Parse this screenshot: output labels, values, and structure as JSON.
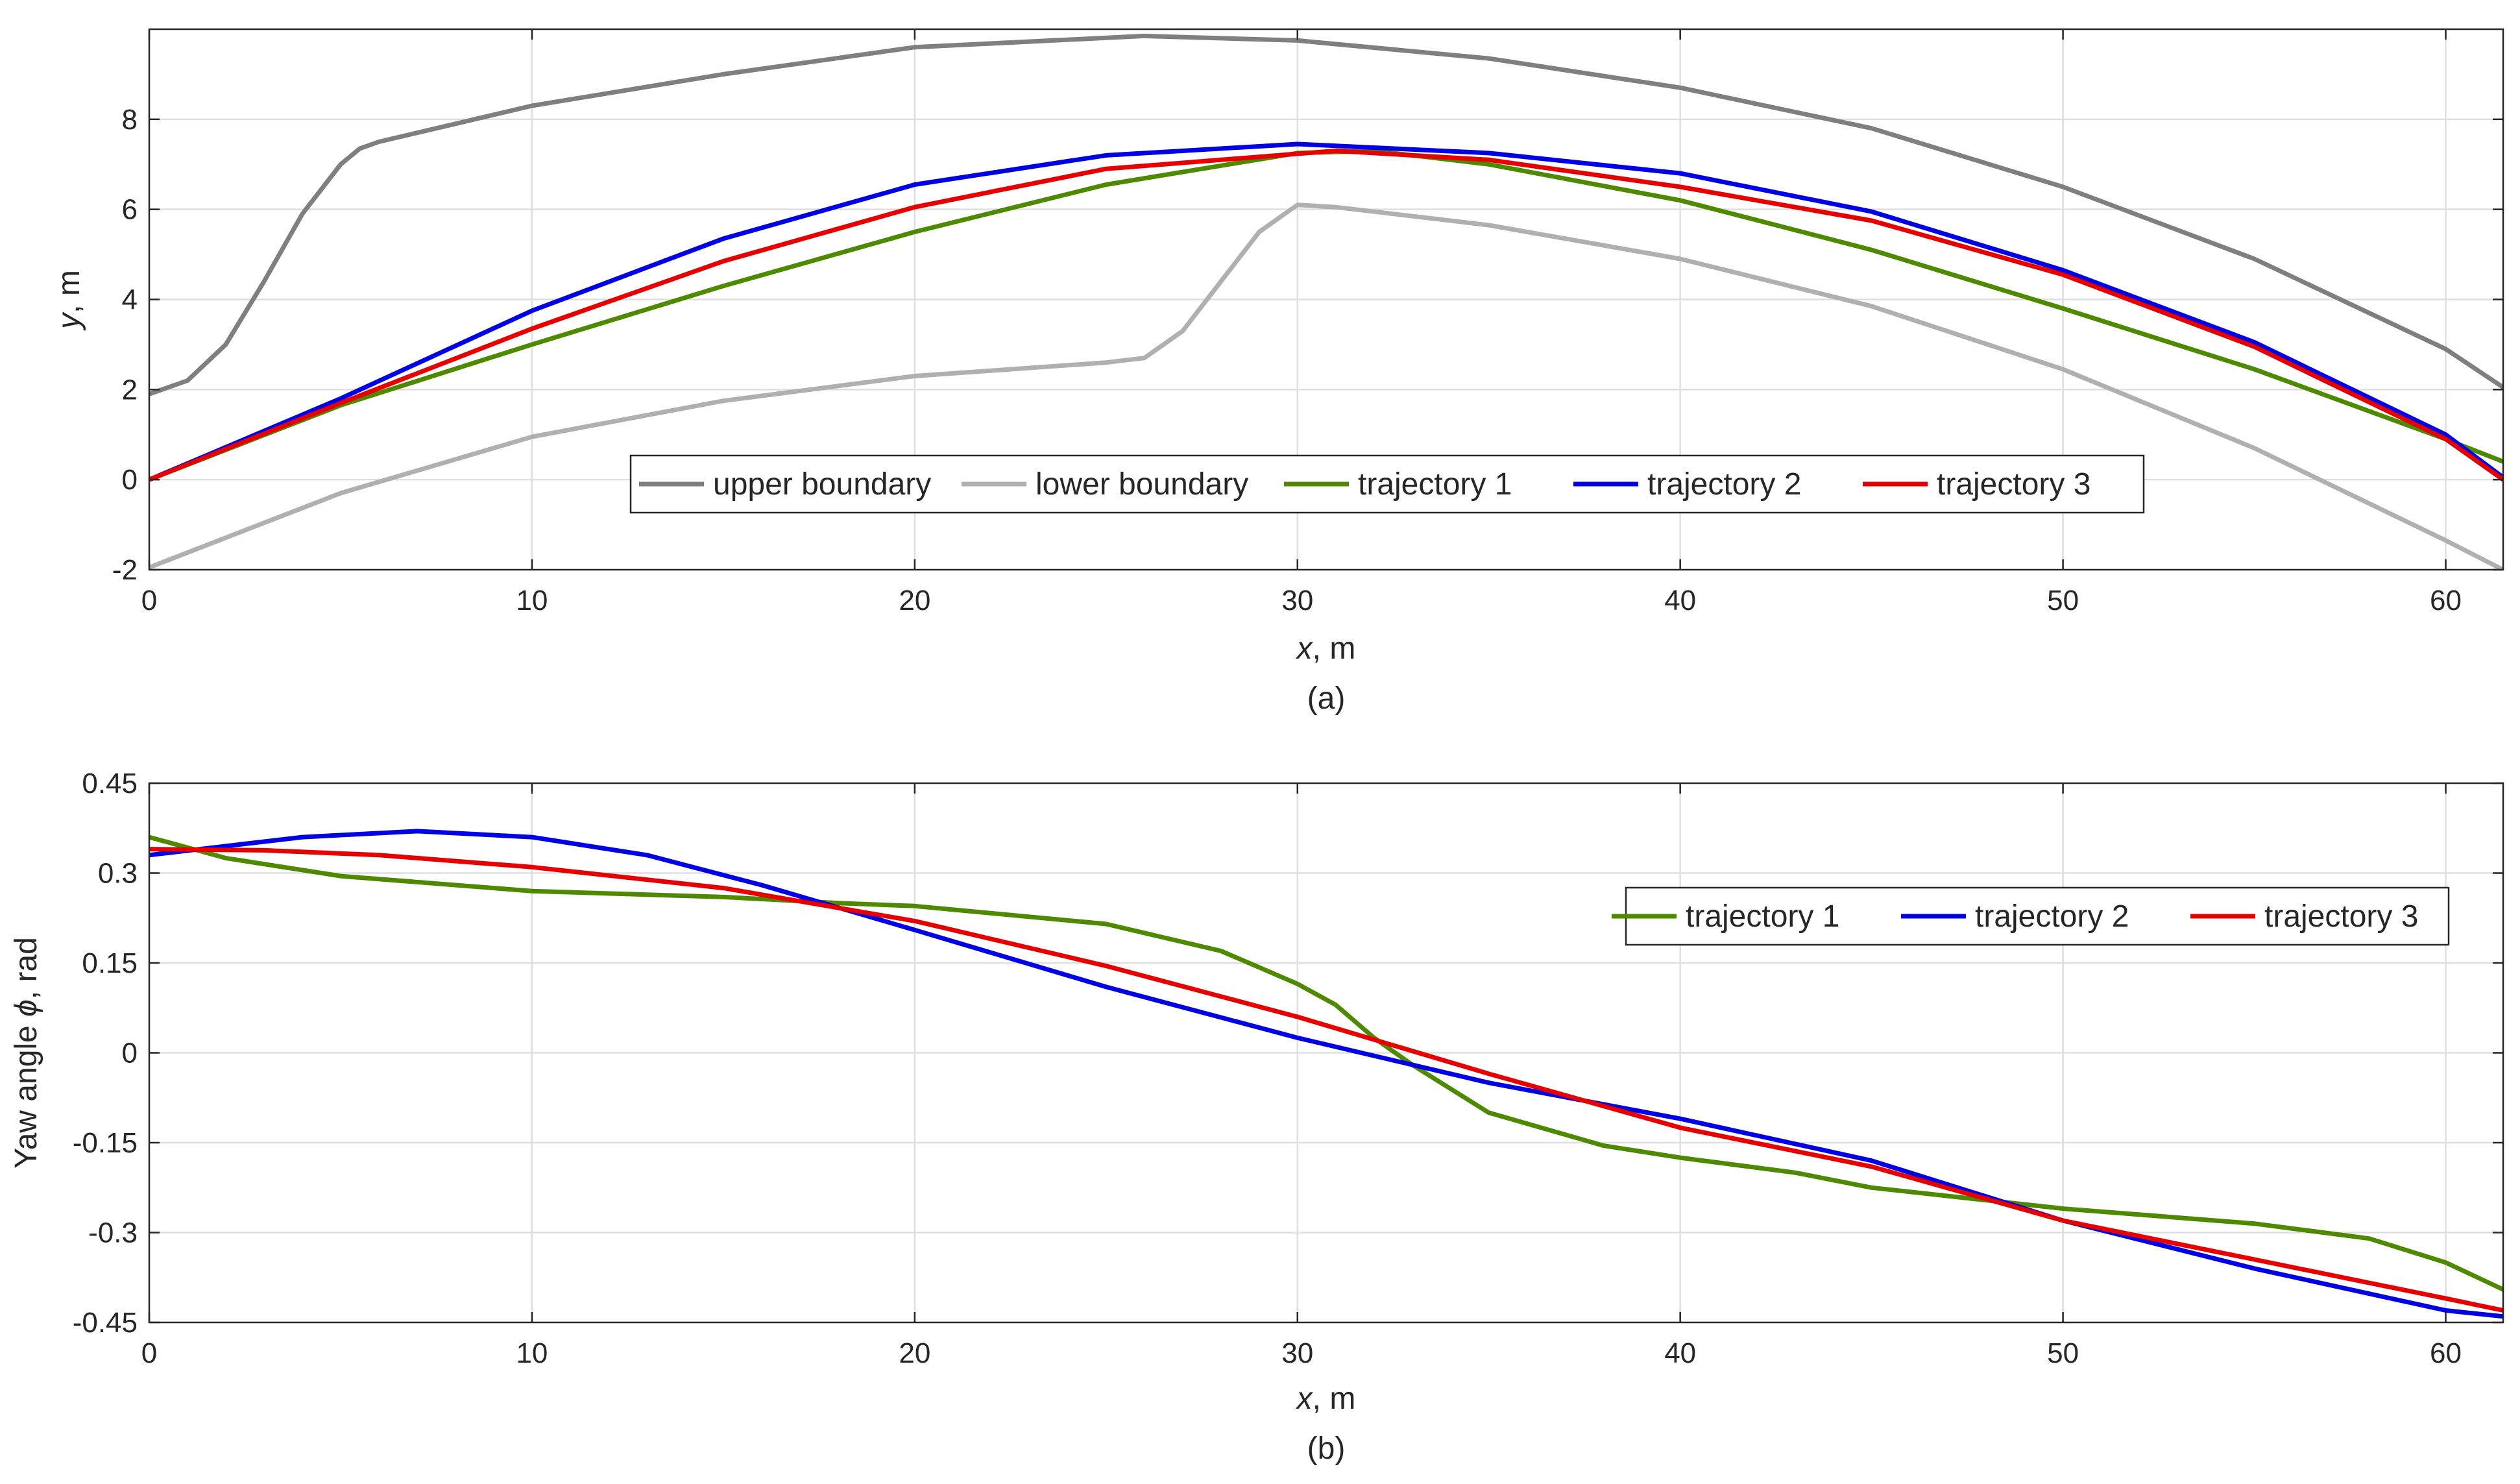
{
  "chart_data": [
    {
      "id": "a",
      "type": "line",
      "caption": "(a)",
      "xlabel_var": "x",
      "xlabel_unit": ", m",
      "ylabel_var": "y",
      "ylabel_unit": ", m",
      "xlim": [
        0,
        61.5
      ],
      "ylim": [
        -2,
        10
      ],
      "xticks": [
        0,
        10,
        20,
        30,
        40,
        50,
        60
      ],
      "yticks": [
        -2,
        0,
        2,
        4,
        6,
        8
      ],
      "ytick_labels": [
        "-2",
        "0",
        "2",
        "4",
        "6",
        "8"
      ],
      "grid": true,
      "legend": {
        "placement": "bottom-center",
        "orientation": "horizontal"
      },
      "series": [
        {
          "name": "upper boundary",
          "color": "#7f7f7f",
          "x": [
            0,
            1,
            2,
            3,
            4,
            5,
            5.5,
            6,
            8,
            10,
            15,
            20,
            26,
            30,
            35,
            40,
            45,
            50,
            55,
            60,
            61.5
          ],
          "y": [
            1.9,
            2.2,
            3.0,
            4.4,
            5.9,
            7.0,
            7.35,
            7.5,
            7.9,
            8.3,
            9.0,
            9.6,
            9.85,
            9.75,
            9.35,
            8.7,
            7.8,
            6.5,
            4.9,
            2.9,
            2.05
          ]
        },
        {
          "name": "lower boundary",
          "color": "#b0b0b0",
          "x": [
            0,
            5,
            10,
            15,
            20,
            25,
            26,
            27,
            28,
            29,
            30,
            31,
            35,
            40,
            45,
            50,
            55,
            60,
            61.5
          ],
          "y": [
            -1.95,
            -0.3,
            0.95,
            1.75,
            2.3,
            2.6,
            2.7,
            3.3,
            4.4,
            5.5,
            6.1,
            6.05,
            5.65,
            4.9,
            3.85,
            2.45,
            0.7,
            -1.35,
            -2.0
          ]
        },
        {
          "name": "trajectory 1",
          "color": "#4d8a00",
          "x": [
            0,
            5,
            10,
            15,
            20,
            25,
            30,
            32,
            35,
            40,
            45,
            50,
            55,
            60,
            61.5
          ],
          "y": [
            0,
            1.65,
            3.0,
            4.3,
            5.5,
            6.55,
            7.25,
            7.3,
            7.0,
            6.2,
            5.1,
            3.8,
            2.45,
            0.9,
            0.4
          ]
        },
        {
          "name": "trajectory 2",
          "color": "#0000e6",
          "x": [
            0,
            5,
            10,
            15,
            20,
            25,
            30,
            35,
            40,
            45,
            50,
            55,
            60,
            61.5
          ],
          "y": [
            0,
            1.8,
            3.75,
            5.35,
            6.55,
            7.2,
            7.45,
            7.25,
            6.8,
            5.95,
            4.65,
            3.05,
            1.0,
            0.05
          ]
        },
        {
          "name": "trajectory 3",
          "color": "#e60000",
          "x": [
            0,
            5,
            10,
            15,
            20,
            25,
            31,
            35,
            40,
            45,
            50,
            55,
            60,
            61.5
          ],
          "y": [
            0,
            1.7,
            3.35,
            4.85,
            6.05,
            6.9,
            7.3,
            7.1,
            6.5,
            5.75,
            4.55,
            2.95,
            0.9,
            0.0
          ]
        }
      ]
    },
    {
      "id": "b",
      "type": "line",
      "caption": "(b)",
      "xlabel_var": "x",
      "xlabel_unit": ", m",
      "ylabel_prefix": "Yaw angle ",
      "ylabel_var": "ϕ",
      "ylabel_unit": ", rad",
      "xlim": [
        0,
        61.5
      ],
      "ylim": [
        -0.45,
        0.45
      ],
      "xticks": [
        0,
        10,
        20,
        30,
        40,
        50,
        60
      ],
      "yticks": [
        -0.45,
        -0.3,
        -0.15,
        0,
        0.15,
        0.3,
        0.45
      ],
      "ytick_labels": [
        "-0.45",
        "-0.3",
        "-0.15",
        "0",
        "0.15",
        "0.3",
        "0.45"
      ],
      "grid": true,
      "legend": {
        "placement": "top-right",
        "orientation": "horizontal"
      },
      "series": [
        {
          "name": "trajectory 1",
          "color": "#4d8a00",
          "x": [
            0,
            2,
            5,
            8,
            10,
            15,
            18,
            20,
            25,
            28,
            30,
            31,
            32,
            33,
            35,
            38,
            40,
            43,
            45,
            50,
            55,
            58,
            60,
            61.5
          ],
          "y": [
            0.36,
            0.325,
            0.295,
            0.28,
            0.27,
            0.26,
            0.25,
            0.245,
            0.215,
            0.17,
            0.115,
            0.08,
            0.025,
            -0.02,
            -0.1,
            -0.155,
            -0.175,
            -0.2,
            -0.225,
            -0.26,
            -0.285,
            -0.31,
            -0.35,
            -0.395
          ]
        },
        {
          "name": "trajectory 2",
          "color": "#0000e6",
          "x": [
            0,
            4,
            7,
            10,
            13,
            16,
            20,
            25,
            30,
            35,
            40,
            45,
            50,
            55,
            60,
            61.5
          ],
          "y": [
            0.33,
            0.36,
            0.37,
            0.36,
            0.33,
            0.28,
            0.205,
            0.11,
            0.025,
            -0.05,
            -0.11,
            -0.18,
            -0.28,
            -0.36,
            -0.43,
            -0.44
          ]
        },
        {
          "name": "trajectory 3",
          "color": "#e60000",
          "x": [
            0,
            3,
            6,
            10,
            15,
            20,
            25,
            30,
            35,
            40,
            45,
            50,
            55,
            60,
            61.5
          ],
          "y": [
            0.34,
            0.338,
            0.33,
            0.31,
            0.275,
            0.22,
            0.145,
            0.06,
            -0.035,
            -0.125,
            -0.19,
            -0.28,
            -0.345,
            -0.41,
            -0.43
          ]
        }
      ]
    }
  ]
}
